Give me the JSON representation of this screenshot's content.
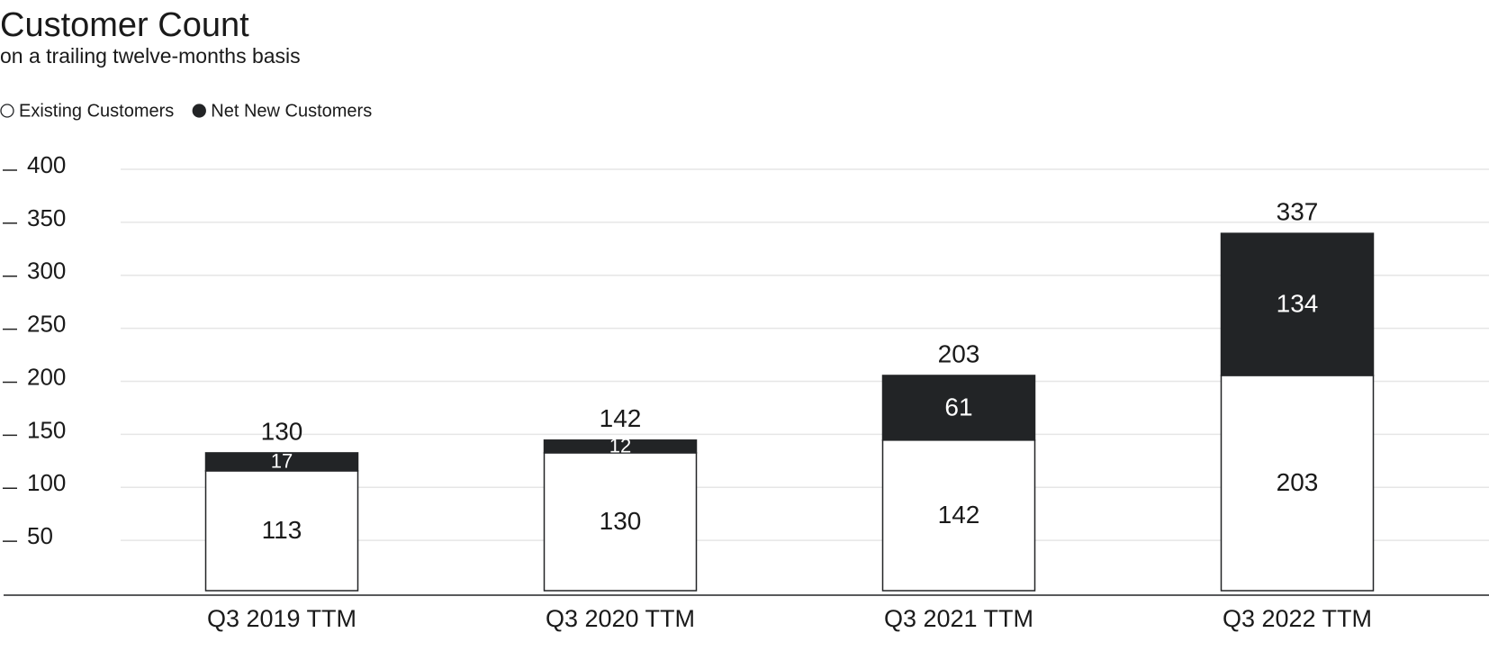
{
  "chart_data": {
    "type": "stacked_bar",
    "title": "Customer Count",
    "subtitle": "on a trailing twelve-months basis",
    "categories": [
      "Q3 2019 TTM",
      "Q3 2020 TTM",
      "Q3 2021 TTM",
      "Q3 2022 TTM"
    ],
    "series": [
      {
        "name": "Existing Customers",
        "color": "#ffffff",
        "values": [
          113,
          130,
          142,
          203
        ]
      },
      {
        "name": "Net New Customers",
        "color": "#222426",
        "values": [
          17,
          12,
          61,
          134
        ]
      }
    ],
    "totals": [
      130,
      142,
      203,
      337
    ],
    "ylim": [
      0,
      400
    ],
    "yticks": [
      50,
      100,
      150,
      200,
      250,
      300,
      350,
      400
    ],
    "grid": true,
    "legend": "top-left"
  }
}
